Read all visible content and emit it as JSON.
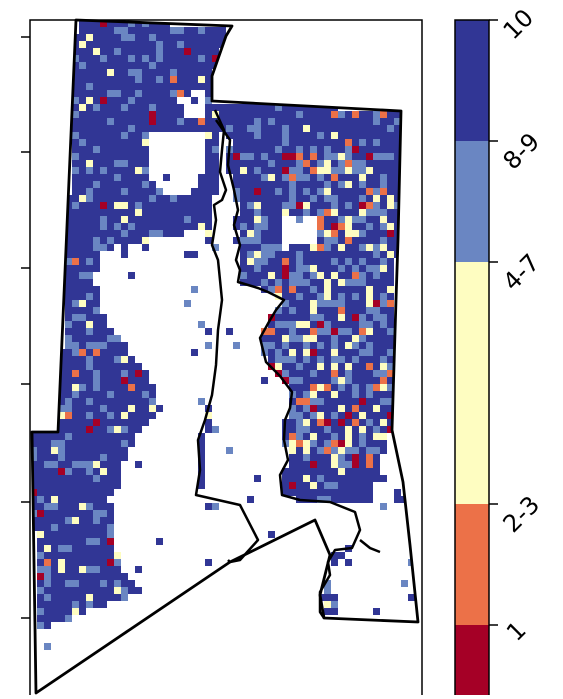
{
  "map": {
    "colors": {
      "class_10": "#313695",
      "class_8_9": "#6a86c2",
      "class_4_7": "#fefdc1",
      "class_2_3": "#ec7148",
      "class_1": "#a50026",
      "boundary": "#000000",
      "background": "#ffffff"
    }
  },
  "colorbar": {
    "classes": [
      {
        "label": "10",
        "color": "#313695"
      },
      {
        "label": "8-9",
        "color": "#6a86c2"
      },
      {
        "label": "4-7",
        "color": "#fefdc1"
      },
      {
        "label": "2-3",
        "color": "#ec7148"
      },
      {
        "label": "1",
        "color": "#a50026"
      }
    ]
  }
}
